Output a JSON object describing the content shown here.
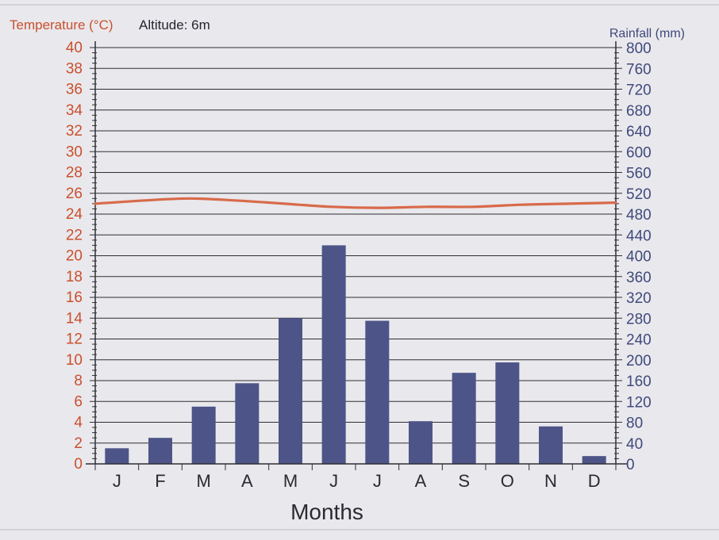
{
  "chart_data": {
    "type": "bar",
    "header": {
      "left_axis_title": "Temperature (°C)",
      "altitude": "Altitude: 6m",
      "right_axis_title": "Rainfall (mm)"
    },
    "categories": [
      "J",
      "F",
      "M",
      "A",
      "M",
      "J",
      "J",
      "A",
      "S",
      "O",
      "N",
      "D"
    ],
    "xlabel": "Months",
    "series": [
      {
        "type": "bar",
        "axis": "right",
        "values": [
          30,
          50,
          110,
          155,
          280,
          420,
          275,
          82,
          175,
          195,
          72,
          15
        ]
      },
      {
        "type": "line",
        "axis": "left",
        "values": [
          25.0,
          25.3,
          25.5,
          25.3,
          25.0,
          24.7,
          24.6,
          24.7,
          24.7,
          24.9,
          25.0,
          25.1
        ]
      }
    ],
    "y_left": {
      "min": 0,
      "max": 40,
      "label_step": 2
    },
    "y_right": {
      "min": 0,
      "max": 800,
      "label_step": 40
    },
    "grid": true,
    "colors": {
      "bars": "#4d5488",
      "temperature_line": "#d86a4a",
      "left_axis_text": "#c9502e",
      "right_axis_text": "#3f4a7d",
      "gridlines": "#2e2e34",
      "background": "#e9e8ec"
    }
  }
}
